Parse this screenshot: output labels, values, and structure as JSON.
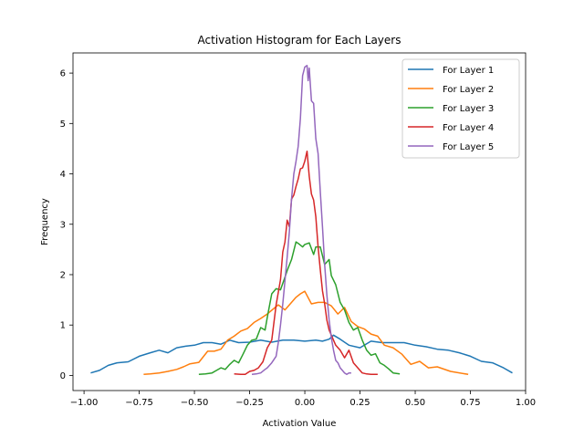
{
  "chart_data": {
    "type": "line",
    "title": "Activation Histogram for Each Layers",
    "xlabel": "Activation Value",
    "ylabel": "Frequency",
    "xlim": [
      -1.05,
      1.0
    ],
    "ylim": [
      -0.3,
      6.4
    ],
    "xticks": [
      -1.0,
      -0.75,
      -0.5,
      -0.25,
      0.0,
      0.25,
      0.5,
      0.75,
      1.0
    ],
    "xtick_labels": [
      "−1.00",
      "−0.75",
      "−0.50",
      "−0.25",
      "0.00",
      "0.25",
      "0.50",
      "0.75",
      "1.00"
    ],
    "yticks": [
      0,
      1,
      2,
      3,
      4,
      5,
      6
    ],
    "ytick_labels": [
      "0",
      "1",
      "2",
      "3",
      "4",
      "5",
      "6"
    ],
    "grid": false,
    "legend_position": "top-right",
    "series": [
      {
        "name": "For Layer 1",
        "color": "#1f77b4",
        "x": [
          -0.97,
          -0.93,
          -0.89,
          -0.85,
          -0.8,
          -0.75,
          -0.7,
          -0.66,
          -0.62,
          -0.58,
          -0.54,
          -0.5,
          -0.46,
          -0.42,
          -0.38,
          -0.34,
          -0.3,
          -0.25,
          -0.2,
          -0.15,
          -0.1,
          -0.05,
          0.0,
          0.05,
          0.08,
          0.11,
          0.13,
          0.16,
          0.2,
          0.25,
          0.3,
          0.35,
          0.4,
          0.45,
          0.5,
          0.55,
          0.6,
          0.65,
          0.7,
          0.75,
          0.8,
          0.85,
          0.9,
          0.94
        ],
        "y": [
          0.05,
          0.1,
          0.2,
          0.25,
          0.27,
          0.38,
          0.45,
          0.5,
          0.45,
          0.55,
          0.58,
          0.6,
          0.65,
          0.65,
          0.62,
          0.7,
          0.65,
          0.66,
          0.7,
          0.66,
          0.7,
          0.7,
          0.68,
          0.7,
          0.68,
          0.72,
          0.8,
          0.72,
          0.6,
          0.55,
          0.68,
          0.65,
          0.65,
          0.65,
          0.6,
          0.57,
          0.52,
          0.5,
          0.45,
          0.38,
          0.28,
          0.25,
          0.15,
          0.05
        ]
      },
      {
        "name": "For Layer 2",
        "color": "#ff7f0e",
        "x": [
          -0.73,
          -0.7,
          -0.66,
          -0.62,
          -0.58,
          -0.55,
          -0.52,
          -0.48,
          -0.44,
          -0.41,
          -0.38,
          -0.35,
          -0.32,
          -0.29,
          -0.26,
          -0.23,
          -0.2,
          -0.17,
          -0.14,
          -0.12,
          -0.09,
          -0.06,
          -0.04,
          -0.02,
          0.0,
          0.03,
          0.06,
          0.09,
          0.12,
          0.15,
          0.18,
          0.21,
          0.24,
          0.27,
          0.3,
          0.33,
          0.36,
          0.4,
          0.44,
          0.48,
          0.52,
          0.56,
          0.6,
          0.66,
          0.74
        ],
        "y": [
          0.02,
          0.03,
          0.05,
          0.08,
          0.12,
          0.17,
          0.23,
          0.26,
          0.48,
          0.48,
          0.52,
          0.7,
          0.78,
          0.88,
          0.93,
          1.05,
          1.13,
          1.22,
          1.33,
          1.4,
          1.3,
          1.45,
          1.55,
          1.62,
          1.67,
          1.42,
          1.45,
          1.45,
          1.38,
          1.22,
          1.35,
          1.07,
          0.97,
          0.92,
          0.82,
          0.78,
          0.6,
          0.55,
          0.42,
          0.22,
          0.28,
          0.15,
          0.17,
          0.08,
          0.02
        ]
      },
      {
        "name": "For Layer 3",
        "color": "#2ca02c",
        "x": [
          -0.48,
          -0.45,
          -0.42,
          -0.4,
          -0.38,
          -0.36,
          -0.34,
          -0.32,
          -0.3,
          -0.28,
          -0.26,
          -0.24,
          -0.22,
          -0.2,
          -0.18,
          -0.17,
          -0.15,
          -0.13,
          -0.11,
          -0.09,
          -0.08,
          -0.06,
          -0.04,
          -0.03,
          -0.01,
          0.0,
          0.02,
          0.04,
          0.05,
          0.07,
          0.09,
          0.11,
          0.12,
          0.14,
          0.16,
          0.18,
          0.2,
          0.22,
          0.24,
          0.26,
          0.28,
          0.3,
          0.32,
          0.34,
          0.36,
          0.38,
          0.4,
          0.43
        ],
        "y": [
          0.02,
          0.03,
          0.05,
          0.1,
          0.15,
          0.12,
          0.22,
          0.3,
          0.25,
          0.42,
          0.6,
          0.7,
          0.72,
          0.95,
          0.9,
          1.15,
          1.62,
          1.72,
          1.7,
          1.95,
          2.08,
          2.3,
          2.65,
          2.62,
          2.55,
          2.6,
          2.63,
          2.4,
          2.55,
          2.55,
          2.2,
          2.3,
          1.98,
          1.8,
          1.45,
          1.3,
          1.05,
          0.9,
          0.95,
          0.7,
          0.5,
          0.4,
          0.43,
          0.25,
          0.2,
          0.13,
          0.05,
          0.03
        ]
      },
      {
        "name": "For Layer 4",
        "color": "#d62728",
        "x": [
          -0.32,
          -0.29,
          -0.27,
          -0.25,
          -0.23,
          -0.21,
          -0.19,
          -0.17,
          -0.15,
          -0.13,
          -0.11,
          -0.1,
          -0.09,
          -0.08,
          -0.07,
          -0.06,
          -0.05,
          -0.04,
          -0.03,
          -0.02,
          -0.01,
          0.0,
          0.01,
          0.02,
          0.03,
          0.04,
          0.05,
          0.06,
          0.07,
          0.08,
          0.09,
          0.1,
          0.11,
          0.12,
          0.14,
          0.16,
          0.18,
          0.2,
          0.22,
          0.24,
          0.26,
          0.28,
          0.3,
          0.33
        ],
        "y": [
          0.03,
          0.02,
          0.02,
          0.08,
          0.1,
          0.15,
          0.27,
          0.55,
          0.7,
          1.4,
          1.9,
          2.45,
          2.65,
          3.08,
          2.95,
          3.5,
          3.58,
          3.75,
          3.9,
          4.1,
          4.12,
          4.25,
          4.45,
          3.95,
          3.6,
          3.48,
          3.15,
          2.55,
          2.1,
          1.68,
          1.42,
          1.1,
          0.9,
          0.8,
          0.6,
          0.5,
          0.35,
          0.5,
          0.25,
          0.15,
          0.05,
          0.03,
          0.02,
          0.02
        ]
      },
      {
        "name": "For Layer 5",
        "color": "#9467bd",
        "x": [
          -0.24,
          -0.22,
          -0.2,
          -0.18,
          -0.17,
          -0.15,
          -0.13,
          -0.12,
          -0.11,
          -0.1,
          -0.09,
          -0.08,
          -0.07,
          -0.06,
          -0.05,
          -0.04,
          -0.03,
          -0.02,
          -0.01,
          0.0,
          0.01,
          0.015,
          0.02,
          0.03,
          0.04,
          0.05,
          0.06,
          0.07,
          0.08,
          0.09,
          0.1,
          0.11,
          0.12,
          0.13,
          0.14,
          0.15,
          0.16,
          0.17,
          0.18,
          0.19,
          0.2,
          0.21
        ],
        "y": [
          0.02,
          0.03,
          0.05,
          0.12,
          0.15,
          0.25,
          0.38,
          0.65,
          1.0,
          1.42,
          1.88,
          2.35,
          2.85,
          3.5,
          4.0,
          4.25,
          4.55,
          5.1,
          5.95,
          6.12,
          6.15,
          5.85,
          6.1,
          5.45,
          5.4,
          4.7,
          4.4,
          3.65,
          2.95,
          2.2,
          1.6,
          1.1,
          0.75,
          0.5,
          0.3,
          0.25,
          0.15,
          0.1,
          0.05,
          0.02,
          0.05,
          0.05
        ]
      }
    ]
  }
}
